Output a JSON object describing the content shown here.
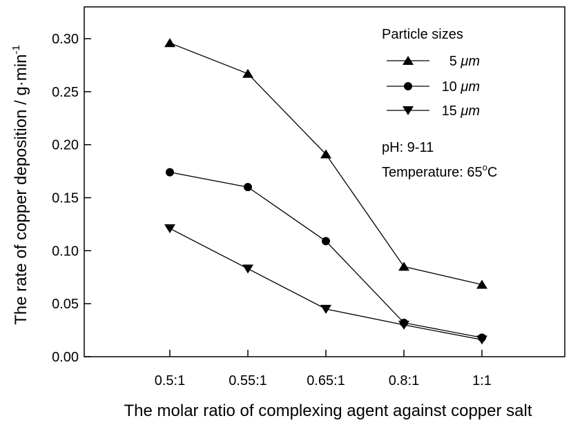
{
  "chart_data": {
    "type": "line",
    "title": "",
    "xlabel": "The molar ratio of complexing agent against copper salt",
    "ylabel": {
      "main": "The rate of copper deposition / g·min",
      "superscript": "-1"
    },
    "categories": [
      "0.5:1",
      "0.55:1",
      "0.65:1",
      "0.8:1",
      "1:1"
    ],
    "y_ticks": [
      "0.00",
      "0.05",
      "0.10",
      "0.15",
      "0.20",
      "0.25",
      "0.30"
    ],
    "ylim": [
      0,
      0.33
    ],
    "grid": false,
    "legend": {
      "title": "Particle sizes",
      "position": "top-right"
    },
    "series": [
      {
        "name": "5 μm",
        "label_num": "5 ",
        "label_unit": "μm",
        "marker": "triangle-up",
        "values": [
          0.296,
          0.267,
          0.191,
          0.085,
          0.068
        ]
      },
      {
        "name": "10 μm",
        "label_num": "10 ",
        "label_unit": "μm",
        "marker": "circle",
        "values": [
          0.174,
          0.16,
          0.109,
          0.032,
          0.018
        ]
      },
      {
        "name": "15 μm",
        "label_num": "15 ",
        "label_unit": "μm",
        "marker": "triangle-down",
        "values": [
          0.121,
          0.083,
          0.045,
          0.03,
          0.016
        ]
      }
    ],
    "annotations": {
      "ph": "pH: 9-11",
      "temperature_prefix": "Temperature: 65",
      "temperature_degree": "o",
      "temperature_unit": "C"
    }
  }
}
